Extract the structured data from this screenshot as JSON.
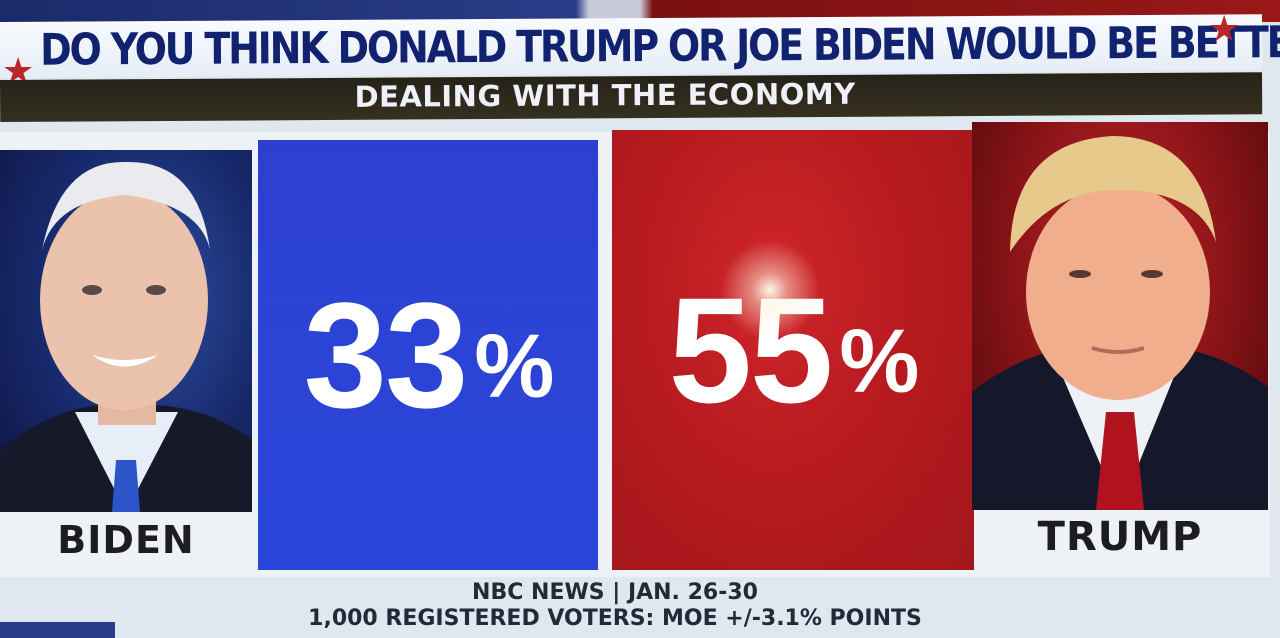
{
  "headline": "DO YOU THINK DONALD TRUMP OR JOE BIDEN WOULD BE BETTER?",
  "subheadline": "DEALING WITH THE ECONOMY",
  "candidates": [
    {
      "name": "BIDEN",
      "percent": "33",
      "color": "#2b44d6"
    },
    {
      "name": "TRUMP",
      "percent": "55",
      "color": "#b51a1f"
    }
  ],
  "percent_symbol": "%",
  "source": {
    "line1": "NBC NEWS | JAN. 26-30",
    "line2": "1,000 REGISTERED VOTERS: MOE +/-3.1% POINTS"
  }
}
